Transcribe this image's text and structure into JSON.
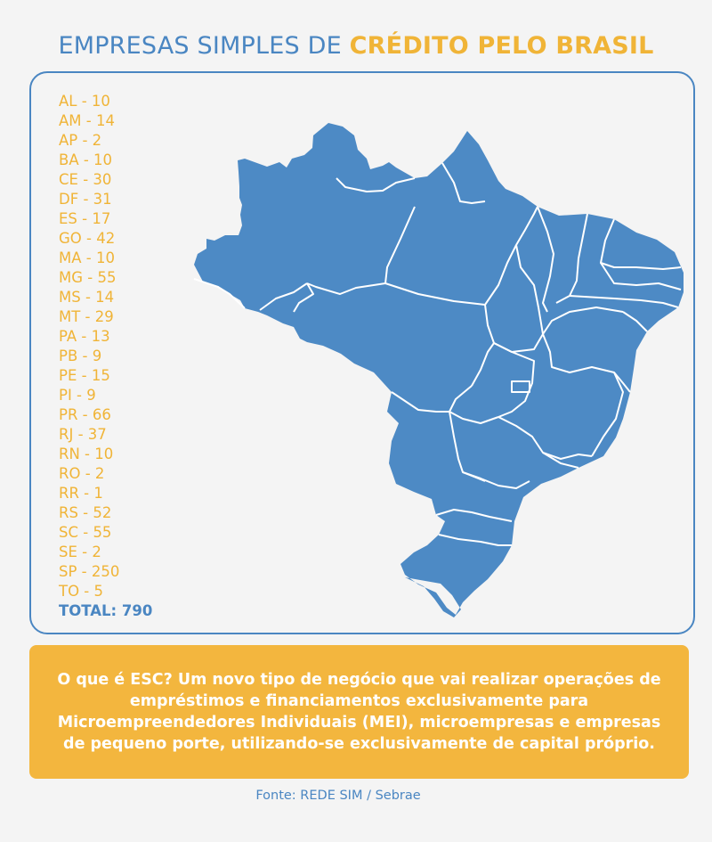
{
  "title": {
    "part1": "EMPRESAS SIMPLES DE ",
    "part2": "CRÉDITO PELO BRASIL"
  },
  "legend": {
    "items": [
      {
        "state": "AL",
        "value": 10,
        "label": "AL - 10"
      },
      {
        "state": "AM",
        "value": 14,
        "label": "AM - 14"
      },
      {
        "state": "AP",
        "value": 2,
        "label": "AP - 2"
      },
      {
        "state": "BA",
        "value": 10,
        "label": "BA - 10"
      },
      {
        "state": "CE",
        "value": 30,
        "label": "CE - 30"
      },
      {
        "state": "DF",
        "value": 31,
        "label": "DF - 31"
      },
      {
        "state": "ES",
        "value": 17,
        "label": "ES - 17"
      },
      {
        "state": "GO",
        "value": 42,
        "label": "GO - 42"
      },
      {
        "state": "MA",
        "value": 10,
        "label": "MA - 10"
      },
      {
        "state": "MG",
        "value": 55,
        "label": "MG - 55"
      },
      {
        "state": "MS",
        "value": 14,
        "label": "MS - 14"
      },
      {
        "state": "MT",
        "value": 29,
        "label": "MT - 29"
      },
      {
        "state": "PA",
        "value": 13,
        "label": "PA - 13"
      },
      {
        "state": "PB",
        "value": 9,
        "label": "PB - 9"
      },
      {
        "state": "PE",
        "value": 15,
        "label": "PE - 15"
      },
      {
        "state": "PI",
        "value": 9,
        "label": "PI - 9"
      },
      {
        "state": "PR",
        "value": 66,
        "label": "PR - 66"
      },
      {
        "state": "RJ",
        "value": 37,
        "label": "RJ - 37"
      },
      {
        "state": "RN",
        "value": 10,
        "label": "RN - 10"
      },
      {
        "state": "RO",
        "value": 2,
        "label": "RO - 2"
      },
      {
        "state": "RR",
        "value": 1,
        "label": "RR - 1"
      },
      {
        "state": "RS",
        "value": 52,
        "label": "RS - 52"
      },
      {
        "state": "SC",
        "value": 55,
        "label": "SC - 55"
      },
      {
        "state": "SE",
        "value": 2,
        "label": "SE - 2"
      },
      {
        "state": "SP",
        "value": 250,
        "label": "SP - 250"
      },
      {
        "state": "TO",
        "value": 5,
        "label": "TO - 5"
      }
    ],
    "total_label": "TOTAL: 790"
  },
  "map": {
    "fill_color": "#4d8ac5",
    "border_color": "#ffffff"
  },
  "info_box": {
    "text": "O que é ESC?  Um novo tipo de negócio que vai realizar operações de empréstimos e financiamentos exclusivamente para Microempreendedores Individuais (MEI), microempresas e empresas de pequeno porte, utilizando-se exclusivamente de capital próprio."
  },
  "source": "Fonte: REDE SIM / Sebrae",
  "colors": {
    "blue": "#4a86c2",
    "yellow": "#f0b437",
    "box": "#f3b63e",
    "background": "#f4f4f4"
  }
}
